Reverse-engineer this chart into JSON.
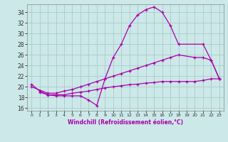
{
  "curve1_x": [
    0,
    1,
    2,
    3,
    4,
    5,
    6,
    7,
    8,
    9,
    10,
    11,
    12,
    13,
    14,
    15,
    16,
    17,
    18,
    21,
    22,
    23
  ],
  "curve1_y": [
    20.5,
    19.2,
    18.5,
    18.3,
    18.3,
    18.3,
    18.3,
    17.5,
    16.5,
    21.5,
    25.5,
    28.0,
    31.5,
    33.5,
    34.5,
    35.0,
    34.0,
    31.5,
    28.0,
    28.0,
    25.0,
    21.5
  ],
  "curve2_x": [
    0,
    2,
    3,
    4,
    5,
    6,
    7,
    8,
    9,
    10,
    11,
    12,
    13,
    14,
    15,
    16,
    17,
    18,
    20,
    21,
    22,
    23
  ],
  "curve2_y": [
    20.0,
    18.8,
    18.8,
    19.2,
    19.5,
    20.0,
    20.5,
    21.0,
    21.5,
    22.0,
    22.5,
    23.0,
    23.5,
    24.0,
    24.5,
    25.0,
    25.5,
    26.0,
    25.5,
    25.5,
    25.0,
    21.5
  ],
  "curve3_x": [
    1,
    2,
    3,
    4,
    5,
    6,
    7,
    8,
    9,
    10,
    11,
    12,
    13,
    14,
    15,
    16,
    17,
    18,
    19,
    20,
    21,
    22,
    23
  ],
  "curve3_y": [
    19.0,
    18.5,
    18.5,
    18.5,
    18.8,
    19.0,
    19.2,
    19.5,
    19.8,
    20.0,
    20.2,
    20.4,
    20.5,
    20.7,
    20.8,
    21.0,
    21.0,
    21.0,
    21.0,
    21.0,
    21.2,
    21.5,
    21.5
  ],
  "line_color": "#aa00aa",
  "bg_color": "#cce8e8",
  "grid_color": "#aacccc",
  "xlabel": "Windchill (Refroidissement éolien,°C)",
  "yticks": [
    16,
    18,
    20,
    22,
    24,
    26,
    28,
    30,
    32,
    34
  ],
  "xticks": [
    0,
    1,
    2,
    3,
    4,
    5,
    6,
    7,
    8,
    9,
    10,
    11,
    12,
    13,
    14,
    15,
    16,
    17,
    18,
    19,
    20,
    21,
    22,
    23
  ],
  "ylim": [
    15.5,
    35.5
  ],
  "xlim": [
    -0.5,
    23.5
  ]
}
